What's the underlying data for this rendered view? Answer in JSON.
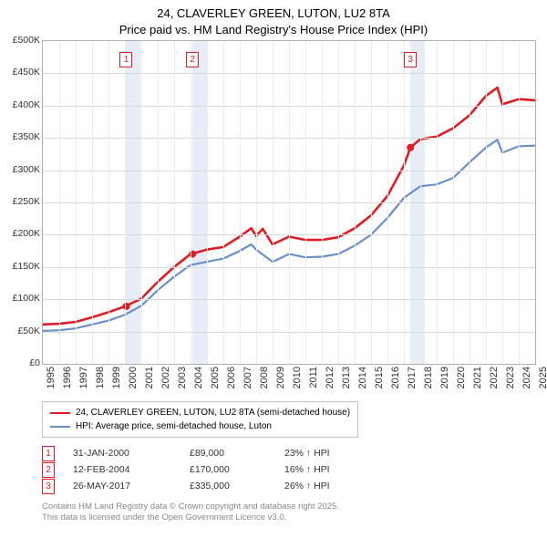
{
  "title_line1": "24, CLAVERLEY GREEN, LUTON, LU2 8TA",
  "title_line2": "Price paid vs. HM Land Registry's House Price Index (HPI)",
  "chart": {
    "type": "line",
    "background_color": "#ffffff",
    "border_color": "#b0b0b0",
    "grid_color": "#d9d9d9",
    "grid_color_v": "#ececec",
    "vband_color": "rgba(200,215,235,0.45)",
    "x_years": [
      1995,
      1996,
      1997,
      1998,
      1999,
      2000,
      2001,
      2002,
      2003,
      2004,
      2005,
      2006,
      2007,
      2008,
      2009,
      2010,
      2011,
      2012,
      2013,
      2014,
      2015,
      2016,
      2017,
      2018,
      2019,
      2020,
      2021,
      2022,
      2023,
      2024,
      2025
    ],
    "y_ticks": [
      0,
      50000,
      100000,
      150000,
      200000,
      250000,
      300000,
      350000,
      400000,
      450000,
      500000
    ],
    "y_tick_labels": [
      "£0",
      "£50K",
      "£100K",
      "£150K",
      "£200K",
      "£250K",
      "£300K",
      "£350K",
      "£400K",
      "£450K",
      "£500K"
    ],
    "ylim": [
      0,
      500000
    ],
    "xlim": [
      1995,
      2025
    ],
    "label_fontsize": 11,
    "series": [
      {
        "name": "price_paid",
        "legend": "24, CLAVERLEY GREEN, LUTON, LU2 8TA (semi-detached house)",
        "color": "#e01b22",
        "line_width": 2.6,
        "x": [
          1995,
          1996,
          1997,
          1998,
          1999,
          2000,
          2001,
          2002,
          2003,
          2003.5,
          2004,
          2005,
          2006,
          2007,
          2007.7,
          2008,
          2008.4,
          2009,
          2010,
          2011,
          2012,
          2013,
          2014,
          2015,
          2016,
          2017,
          2017.4,
          2018,
          2019,
          2020,
          2021,
          2022,
          2022.7,
          2023,
          2024,
          2025
        ],
        "y": [
          61000,
          62000,
          65000,
          72000,
          80000,
          89000,
          101000,
          127000,
          150000,
          160000,
          170000,
          177000,
          181000,
          197000,
          210000,
          198000,
          209000,
          185000,
          197000,
          192000,
          192000,
          196000,
          210000,
          230000,
          260000,
          307000,
          335000,
          348000,
          352000,
          365000,
          385000,
          415000,
          428000,
          402000,
          410000,
          408000
        ]
      },
      {
        "name": "hpi",
        "legend": "HPI: Average price, semi-detached house, Luton",
        "color": "#6b8fc9",
        "line_width": 2.2,
        "x": [
          1995,
          1996,
          1997,
          1998,
          1999,
          2000,
          2001,
          2002,
          2003,
          2004,
          2005,
          2006,
          2007,
          2007.7,
          2008,
          2009,
          2010,
          2011,
          2012,
          2013,
          2014,
          2015,
          2016,
          2017,
          2018,
          2019,
          2020,
          2021,
          2022,
          2022.7,
          2023,
          2024,
          2025
        ],
        "y": [
          51000,
          52000,
          55000,
          61000,
          67000,
          76000,
          90000,
          114000,
          135000,
          153000,
          158000,
          163000,
          175000,
          185000,
          177000,
          158000,
          170000,
          165000,
          166000,
          170000,
          183000,
          200000,
          226000,
          257000,
          275000,
          278000,
          288000,
          312000,
          335000,
          347000,
          327000,
          337000,
          338000
        ]
      }
    ],
    "vbands": [
      {
        "from": 2000.083,
        "to": 2000.95
      },
      {
        "from": 2004.12,
        "to": 2005.0
      },
      {
        "from": 2017.4,
        "to": 2018.3
      }
    ],
    "event_markers": [
      {
        "n": "1",
        "x": 2000.083,
        "y": 89000,
        "color": "#e01b22"
      },
      {
        "n": "2",
        "x": 2004.12,
        "y": 170000,
        "color": "#e01b22"
      },
      {
        "n": "3",
        "x": 2017.4,
        "y": 335000,
        "color": "#e01b22"
      }
    ]
  },
  "events": [
    {
      "n": "1",
      "date": "31-JAN-2000",
      "price": "£89,000",
      "pct": "23% ↑ HPI",
      "color": "#e01b22"
    },
    {
      "n": "2",
      "date": "12-FEB-2004",
      "price": "£170,000",
      "pct": "16% ↑ HPI",
      "color": "#e01b22"
    },
    {
      "n": "3",
      "date": "26-MAY-2017",
      "price": "£335,000",
      "pct": "26% ↑ HPI",
      "color": "#e01b22"
    }
  ],
  "footer_line1": "Contains HM Land Registry data © Crown copyright and database right 2025.",
  "footer_line2": "This data is licensed under the Open Government Licence v3.0."
}
